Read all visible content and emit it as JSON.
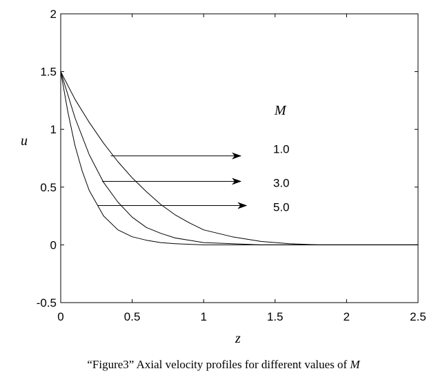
{
  "chart_data": {
    "type": "line",
    "xlabel": "z",
    "ylabel": "u",
    "xlim": [
      0,
      2.5
    ],
    "ylim": [
      -0.5,
      2
    ],
    "xticks": [
      "0",
      "0.5",
      "1",
      "1.5",
      "2",
      "2.5"
    ],
    "yticks": [
      "-0.5",
      "0",
      "0.5",
      "1",
      "1.5",
      "2"
    ],
    "grid": false,
    "legend": {
      "title": "M",
      "placement": "right, with arrows indicating curves",
      "entries": [
        "1.0",
        "3.0",
        "5.0"
      ]
    },
    "series": [
      {
        "name": "1.0",
        "x": [
          0,
          0.1,
          0.2,
          0.3,
          0.4,
          0.5,
          0.6,
          0.7,
          0.8,
          0.9,
          1.0,
          1.2,
          1.4,
          1.6,
          1.8,
          2.0,
          2.5
        ],
        "values": [
          1.5,
          1.26,
          1.06,
          0.88,
          0.72,
          0.58,
          0.46,
          0.35,
          0.26,
          0.19,
          0.13,
          0.07,
          0.03,
          0.01,
          0.0,
          0.0,
          0.0
        ]
      },
      {
        "name": "3.0",
        "x": [
          0,
          0.1,
          0.2,
          0.3,
          0.4,
          0.5,
          0.6,
          0.7,
          0.8,
          0.9,
          1.0,
          1.2,
          1.4,
          1.6,
          2.0,
          2.5
        ],
        "values": [
          1.5,
          1.1,
          0.78,
          0.54,
          0.37,
          0.24,
          0.15,
          0.1,
          0.06,
          0.04,
          0.02,
          0.01,
          0.0,
          0.0,
          0.0,
          0.0
        ]
      },
      {
        "name": "5.0",
        "x": [
          0,
          0.05,
          0.1,
          0.15,
          0.2,
          0.3,
          0.4,
          0.5,
          0.6,
          0.7,
          0.8,
          1.0,
          1.2,
          1.5,
          2.0,
          2.5
        ],
        "values": [
          1.5,
          1.15,
          0.86,
          0.64,
          0.47,
          0.25,
          0.13,
          0.07,
          0.04,
          0.02,
          0.01,
          0.0,
          0.0,
          0.0,
          0.0,
          0.0
        ]
      }
    ],
    "annotations": [
      {
        "label": "1.0",
        "arrow_from": [
          0.35,
          0.77
        ],
        "arrow_to": [
          1.26,
          0.77
        ]
      },
      {
        "label": "3.0",
        "arrow_from": [
          0.29,
          0.55
        ],
        "arrow_to": [
          1.26,
          0.55
        ]
      },
      {
        "label": "5.0",
        "arrow_from": [
          0.26,
          0.34
        ],
        "arrow_to": [
          1.3,
          0.34
        ]
      }
    ]
  },
  "caption": {
    "text": "“Figure3” Axial velocity profiles for different values of ",
    "var": "M"
  }
}
